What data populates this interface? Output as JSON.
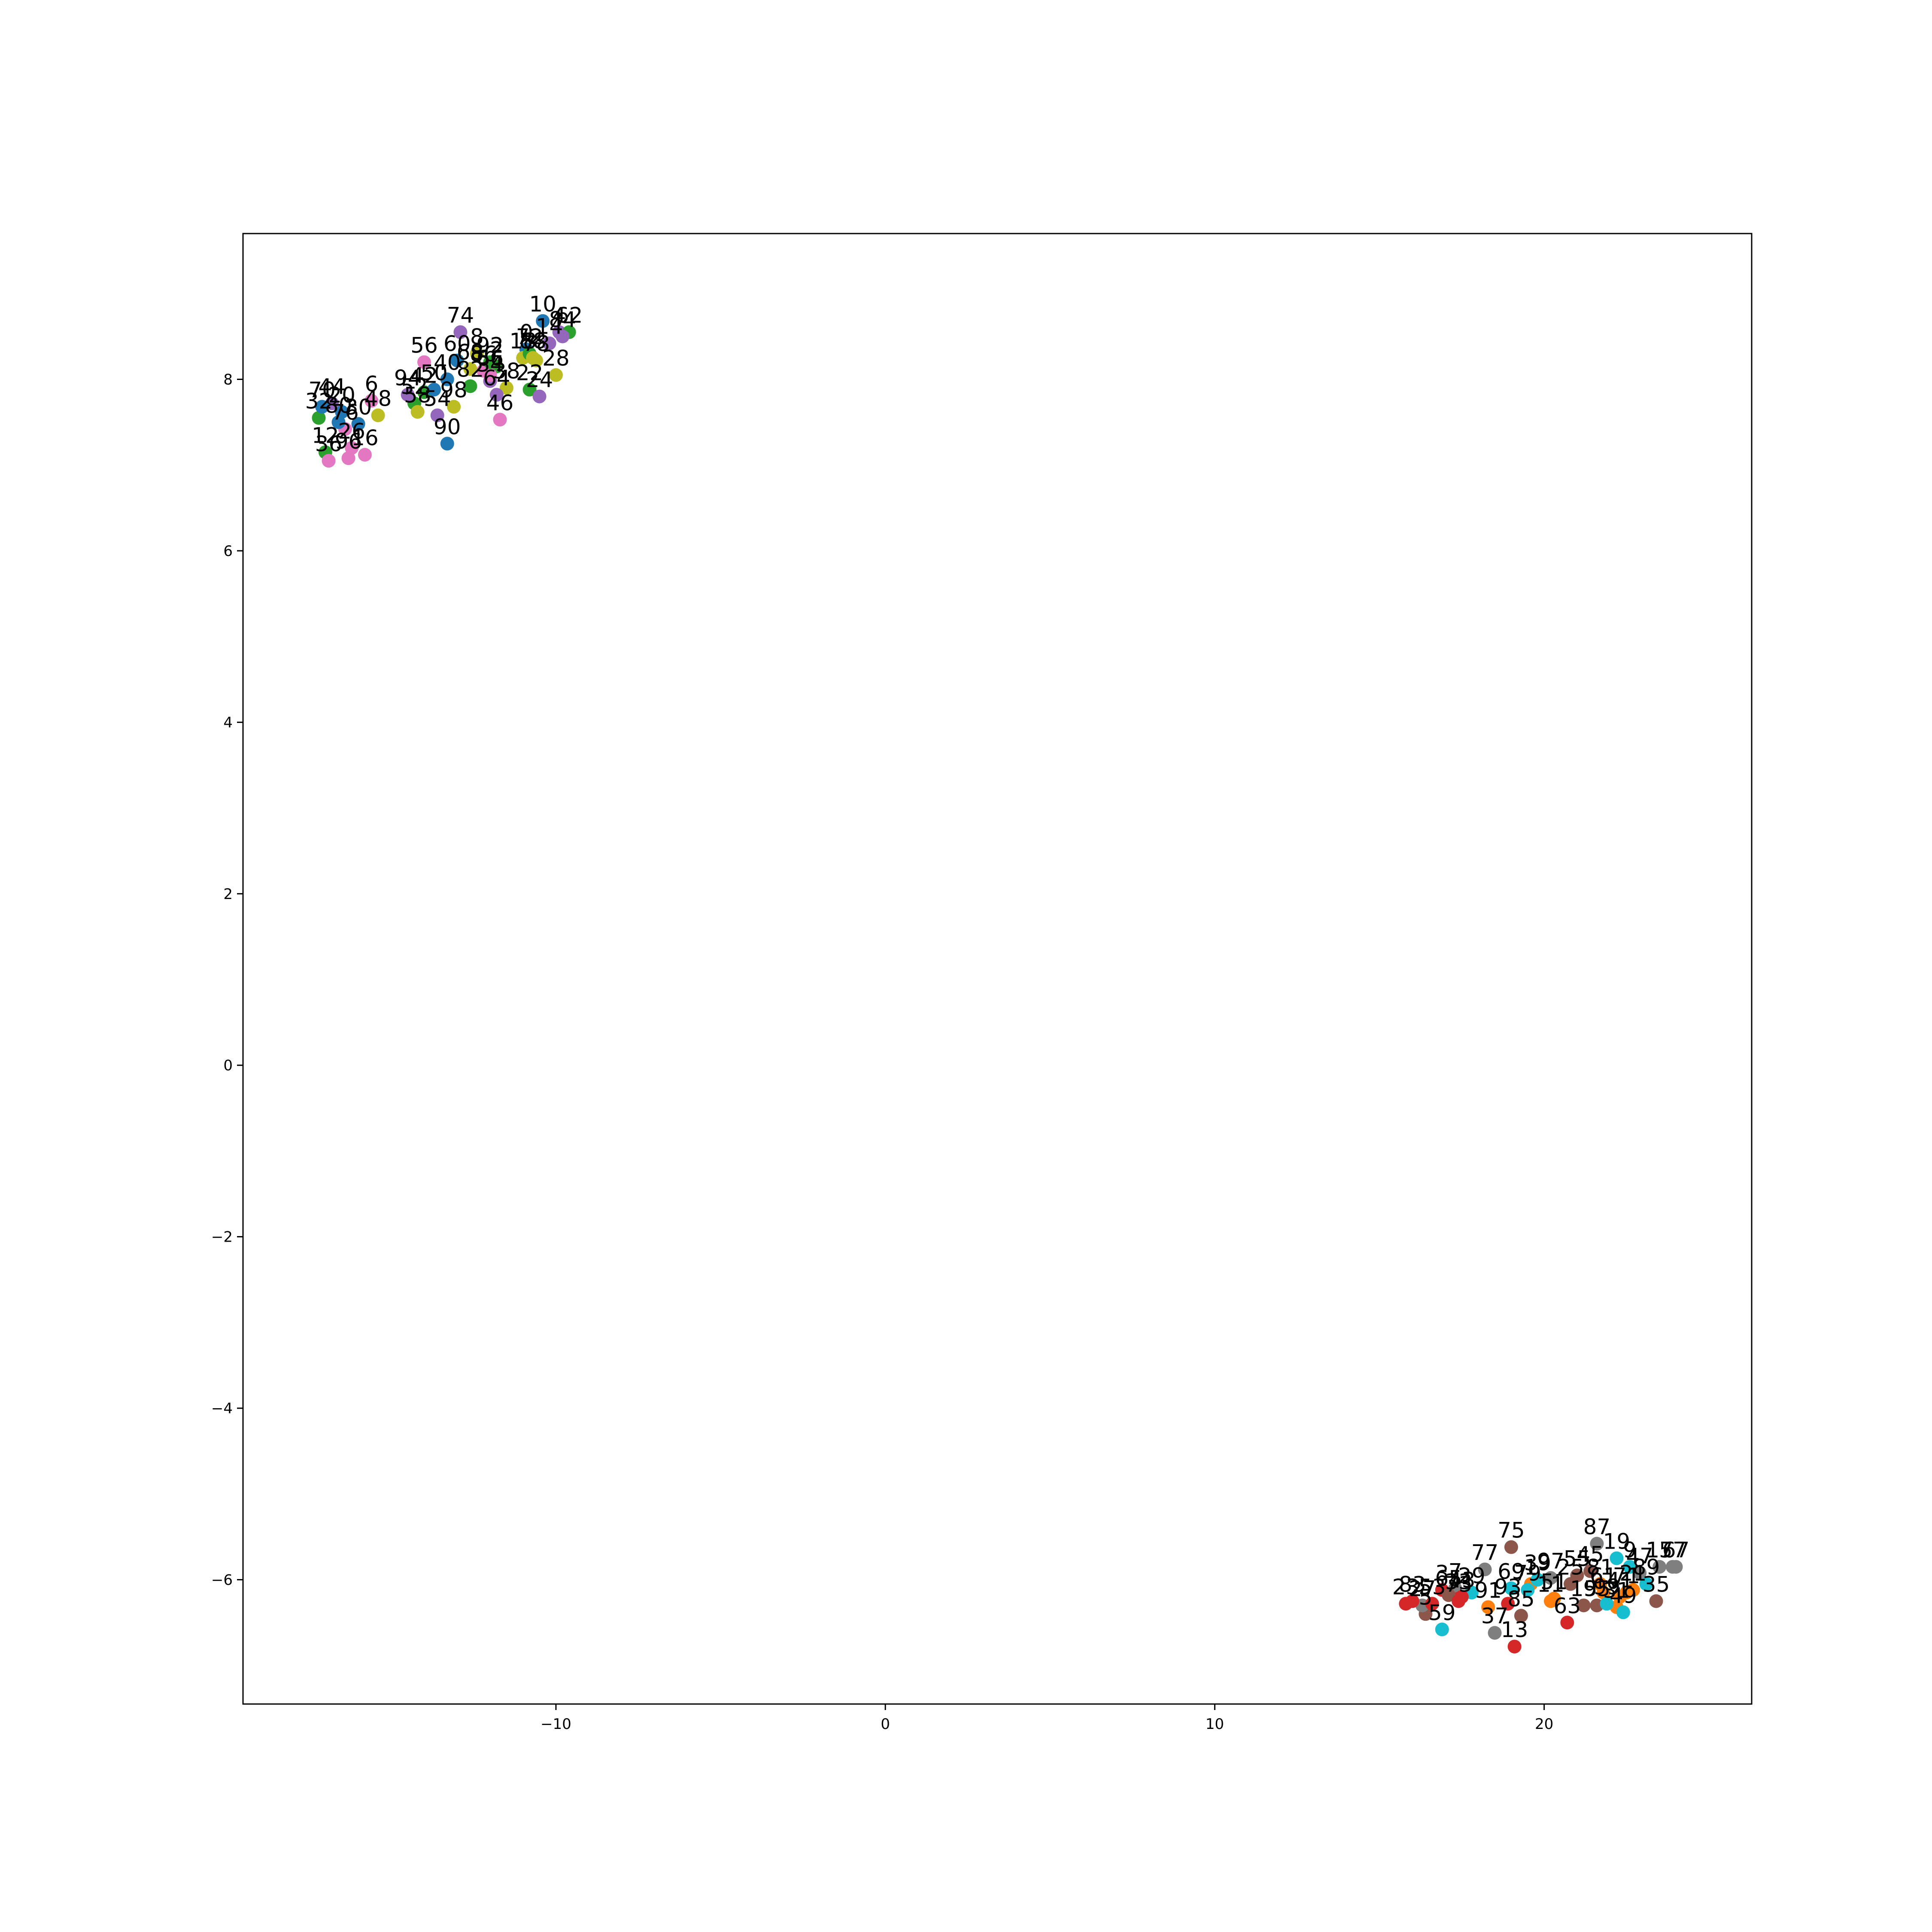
{
  "chart_data": {
    "type": "scatter",
    "title": "",
    "xlabel": "",
    "ylabel": "",
    "xlim": [
      -19.5,
      26.3
    ],
    "ylim": [
      -7.45,
      9.7
    ],
    "xticks": [
      -10,
      0,
      10,
      20
    ],
    "xtick_labels": [
      "−10",
      "0",
      "10",
      "20"
    ],
    "yticks": [
      -6,
      -4,
      -2,
      0,
      2,
      4,
      6,
      8
    ],
    "ytick_labels": [
      "−6",
      "−4",
      "−2",
      "0",
      "2",
      "4",
      "6",
      "8"
    ],
    "grid": false,
    "legend": "none",
    "colors": [
      "#1f77b4",
      "#ff7f0e",
      "#2ca02c",
      "#d62728",
      "#9467bd",
      "#8c564b",
      "#e377c2",
      "#7f7f7f",
      "#bcbd22",
      "#17becf"
    ],
    "points": [
      {
        "label": "0",
        "x": -10.9,
        "y": 8.35,
        "color": 0
      },
      {
        "label": "2",
        "x": -11.8,
        "y": 8.15,
        "color": 2
      },
      {
        "label": "4",
        "x": -9.9,
        "y": 8.55,
        "color": 4
      },
      {
        "label": "6",
        "x": -15.6,
        "y": 7.75,
        "color": 6
      },
      {
        "label": "8",
        "x": -12.4,
        "y": 8.3,
        "color": 8
      },
      {
        "label": "10",
        "x": -10.4,
        "y": 8.68,
        "color": 0
      },
      {
        "label": "12",
        "x": -17.0,
        "y": 7.15,
        "color": 2
      },
      {
        "label": "14",
        "x": -10.2,
        "y": 8.42,
        "color": 4
      },
      {
        "label": "16",
        "x": -15.8,
        "y": 7.12,
        "color": 6
      },
      {
        "label": "18",
        "x": -11.0,
        "y": 8.25,
        "color": 8
      },
      {
        "label": "20",
        "x": -16.5,
        "y": 7.62,
        "color": 0
      },
      {
        "label": "22",
        "x": -10.8,
        "y": 7.88,
        "color": 2
      },
      {
        "label": "24",
        "x": -10.5,
        "y": 7.8,
        "color": 4
      },
      {
        "label": "26",
        "x": -16.2,
        "y": 7.2,
        "color": 6
      },
      {
        "label": "28",
        "x": -10.0,
        "y": 8.05,
        "color": 8
      },
      {
        "label": "30",
        "x": -16.0,
        "y": 7.48,
        "color": 0
      },
      {
        "label": "32",
        "x": -17.2,
        "y": 7.55,
        "color": 2
      },
      {
        "label": "34",
        "x": -12.0,
        "y": 7.98,
        "color": 4
      },
      {
        "label": "36",
        "x": -16.9,
        "y": 7.05,
        "color": 6
      },
      {
        "label": "38",
        "x": -11.5,
        "y": 7.9,
        "color": 8
      },
      {
        "label": "40",
        "x": -13.3,
        "y": 8.0,
        "color": 0
      },
      {
        "label": "42",
        "x": -14.0,
        "y": 7.85,
        "color": 2
      },
      {
        "label": "44",
        "x": -16.8,
        "y": 7.72,
        "color": 4
      },
      {
        "label": "46",
        "x": -11.7,
        "y": 7.53,
        "color": 6
      },
      {
        "label": "48",
        "x": -15.4,
        "y": 7.58,
        "color": 8
      },
      {
        "label": "50",
        "x": -13.7,
        "y": 7.88,
        "color": 0
      },
      {
        "label": "52",
        "x": -14.3,
        "y": 7.72,
        "color": 2
      },
      {
        "label": "54",
        "x": -13.6,
        "y": 7.58,
        "color": 4
      },
      {
        "label": "56",
        "x": -14.0,
        "y": 8.2,
        "color": 6
      },
      {
        "label": "58",
        "x": -14.2,
        "y": 7.62,
        "color": 8
      },
      {
        "label": "60",
        "x": -13.0,
        "y": 8.22,
        "color": 0
      },
      {
        "label": "62",
        "x": -9.6,
        "y": 8.55,
        "color": 2
      },
      {
        "label": "64",
        "x": -11.8,
        "y": 7.82,
        "color": 4
      },
      {
        "label": "66",
        "x": -12.0,
        "y": 8.05,
        "color": 6
      },
      {
        "label": "68",
        "x": -12.6,
        "y": 8.12,
        "color": 8
      },
      {
        "label": "70",
        "x": -17.1,
        "y": 7.68,
        "color": 0
      },
      {
        "label": "72",
        "x": -10.8,
        "y": 8.3,
        "color": 2
      },
      {
        "label": "74",
        "x": -12.9,
        "y": 8.55,
        "color": 4
      },
      {
        "label": "76",
        "x": -16.4,
        "y": 7.42,
        "color": 6
      },
      {
        "label": "78",
        "x": -10.6,
        "y": 8.22,
        "color": 8
      },
      {
        "label": "80",
        "x": -16.6,
        "y": 7.5,
        "color": 0
      },
      {
        "label": "82",
        "x": -12.6,
        "y": 7.92,
        "color": 2
      },
      {
        "label": "84",
        "x": -9.8,
        "y": 8.5,
        "color": 4
      },
      {
        "label": "86",
        "x": -12.2,
        "y": 8.1,
        "color": 6
      },
      {
        "label": "88",
        "x": -10.7,
        "y": 8.25,
        "color": 8
      },
      {
        "label": "90",
        "x": -13.3,
        "y": 7.25,
        "color": 0
      },
      {
        "label": "92",
        "x": -12.0,
        "y": 8.2,
        "color": 2
      },
      {
        "label": "94",
        "x": -14.5,
        "y": 7.82,
        "color": 4
      },
      {
        "label": "96",
        "x": -16.3,
        "y": 7.08,
        "color": 6
      },
      {
        "label": "98",
        "x": -13.1,
        "y": 7.68,
        "color": 8
      },
      {
        "label": "1",
        "x": 19.6,
        "y": -6.05,
        "color": 1
      },
      {
        "label": "3",
        "x": 16.9,
        "y": -6.12,
        "color": 3
      },
      {
        "label": "5",
        "x": 16.4,
        "y": -6.4,
        "color": 5
      },
      {
        "label": "7",
        "x": 17.3,
        "y": -6.1,
        "color": 7
      },
      {
        "label": "9",
        "x": 22.6,
        "y": -5.85,
        "color": 9
      },
      {
        "label": "11",
        "x": 20.2,
        "y": -6.25,
        "color": 1
      },
      {
        "label": "13",
        "x": 19.1,
        "y": -6.78,
        "color": 3
      },
      {
        "label": "15",
        "x": 21.2,
        "y": -6.3,
        "color": 5
      },
      {
        "label": "17",
        "x": 23.5,
        "y": -5.85,
        "color": 7
      },
      {
        "label": "19",
        "x": 22.2,
        "y": -5.75,
        "color": 9
      },
      {
        "label": "21",
        "x": 22.7,
        "y": -6.12,
        "color": 1
      },
      {
        "label": "23",
        "x": 15.8,
        "y": -6.28,
        "color": 3
      },
      {
        "label": "25",
        "x": 20.8,
        "y": -6.05,
        "color": 5
      },
      {
        "label": "27",
        "x": 16.3,
        "y": -6.3,
        "color": 7
      },
      {
        "label": "29",
        "x": 17.8,
        "y": -6.15,
        "color": 9
      },
      {
        "label": "31",
        "x": 22.2,
        "y": -6.32,
        "color": 1
      },
      {
        "label": "33",
        "x": 17.4,
        "y": -6.22,
        "color": 3
      },
      {
        "label": "35",
        "x": 23.4,
        "y": -6.25,
        "color": 5
      },
      {
        "label": "37",
        "x": 18.5,
        "y": -6.62,
        "color": 7
      },
      {
        "label": "39",
        "x": 19.8,
        "y": -6.0,
        "color": 9
      },
      {
        "label": "41",
        "x": 22.3,
        "y": -6.2,
        "color": 1
      },
      {
        "label": "43",
        "x": 17.5,
        "y": -6.2,
        "color": 3
      },
      {
        "label": "45",
        "x": 21.4,
        "y": -5.9,
        "color": 5
      },
      {
        "label": "47",
        "x": 22.9,
        "y": -5.92,
        "color": 7
      },
      {
        "label": "49",
        "x": 22.4,
        "y": -6.38,
        "color": 9
      },
      {
        "label": "51",
        "x": 20.3,
        "y": -6.22,
        "color": 1
      },
      {
        "label": "53",
        "x": 16.6,
        "y": -6.28,
        "color": 3
      },
      {
        "label": "55",
        "x": 21.0,
        "y": -5.95,
        "color": 5
      },
      {
        "label": "57",
        "x": 23.9,
        "y": -5.85,
        "color": 7
      },
      {
        "label": "59",
        "x": 16.9,
        "y": -6.58,
        "color": 9
      },
      {
        "label": "61",
        "x": 21.8,
        "y": -6.15,
        "color": 1
      },
      {
        "label": "63",
        "x": 20.7,
        "y": -6.5,
        "color": 3
      },
      {
        "label": "65",
        "x": 17.1,
        "y": -6.18,
        "color": 5
      },
      {
        "label": "67",
        "x": 24.0,
        "y": -5.85,
        "color": 7
      },
      {
        "label": "69",
        "x": 19.0,
        "y": -6.1,
        "color": 9
      },
      {
        "label": "71",
        "x": 22.5,
        "y": -6.15,
        "color": 1
      },
      {
        "label": "73",
        "x": 17.4,
        "y": -6.25,
        "color": 3
      },
      {
        "label": "75",
        "x": 19.0,
        "y": -5.62,
        "color": 5
      },
      {
        "label": "77",
        "x": 18.2,
        "y": -5.88,
        "color": 7
      },
      {
        "label": "79",
        "x": 19.5,
        "y": -6.12,
        "color": 9
      },
      {
        "label": "81",
        "x": 21.7,
        "y": -6.05,
        "color": 1
      },
      {
        "label": "83",
        "x": 16.0,
        "y": -6.25,
        "color": 3
      },
      {
        "label": "85",
        "x": 19.3,
        "y": -6.42,
        "color": 5
      },
      {
        "label": "87",
        "x": 21.6,
        "y": -5.58,
        "color": 7
      },
      {
        "label": "89",
        "x": 23.1,
        "y": -6.05,
        "color": 9
      },
      {
        "label": "91",
        "x": 18.3,
        "y": -6.32,
        "color": 1
      },
      {
        "label": "93",
        "x": 18.9,
        "y": -6.28,
        "color": 3
      },
      {
        "label": "95",
        "x": 21.6,
        "y": -6.3,
        "color": 5
      },
      {
        "label": "97",
        "x": 20.2,
        "y": -5.98,
        "color": 7
      },
      {
        "label": "99",
        "x": 21.9,
        "y": -6.28,
        "color": 9
      }
    ]
  }
}
